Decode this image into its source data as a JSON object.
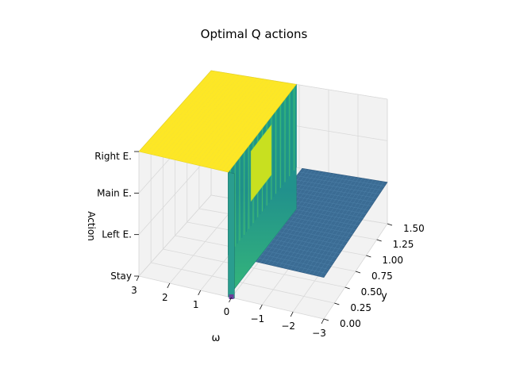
{
  "chart_data": {
    "type": "surface3d",
    "title": "Optimal Q actions",
    "xlabel": "ω",
    "ylabel": "y",
    "zlabel": "Action",
    "x_ticks": [
      "3",
      "2",
      "1",
      "0",
      "−1",
      "−2",
      "−3"
    ],
    "x_tick_values": [
      3,
      2,
      1,
      0,
      -1,
      -2,
      -3
    ],
    "y_ticks": [
      "0.00",
      "0.25",
      "0.50",
      "0.75",
      "1.00",
      "1.25",
      "1.50"
    ],
    "y_tick_values": [
      0,
      0.25,
      0.5,
      0.75,
      1.0,
      1.25,
      1.5
    ],
    "z_ticks": [
      "Stay",
      "Left E.",
      "Main E.",
      "Right E."
    ],
    "z_tick_values": [
      0,
      1,
      2,
      3
    ],
    "xlim": [
      -3,
      3
    ],
    "ylim": [
      0,
      1.5
    ],
    "zlim": [
      0,
      3
    ],
    "colormap": "viridis",
    "grid": true,
    "regions": [
      {
        "omega_range": [
          0.1,
          3
        ],
        "y_range": [
          0,
          1.5
        ],
        "action": "Right E."
      },
      {
        "omega_range": [
          -3,
          -0.1
        ],
        "y_range": [
          0,
          1.5
        ],
        "action": "Left E."
      },
      {
        "omega_range": [
          -0.1,
          0.1
        ],
        "y_range": [
          0,
          1.5
        ],
        "action": "Stay"
      }
    ]
  },
  "colors": {
    "top_plateau": "#fde725",
    "low_plateau": "#3b6c94",
    "wall": "#21a585",
    "grid": "#d9d9d9",
    "pane": "#f2f2f2"
  }
}
